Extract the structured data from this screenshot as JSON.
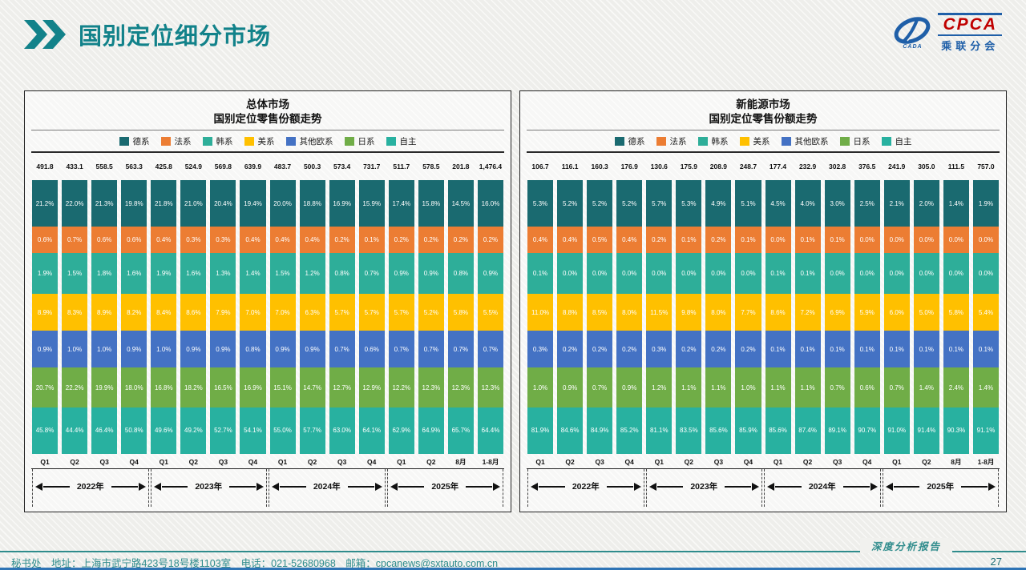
{
  "header": {
    "title": "国别定位细分市场"
  },
  "logo": {
    "cpca": "CPCA",
    "org": "乘联分会",
    "emblem": "CADA"
  },
  "footer": {
    "contact": "秘书处　地址：上海市武宁路423号18号楼1103室　电话：021-52680968　邮箱：cpcanews@sxtauto.com.cn",
    "report_label": "深度分析报告",
    "page_number": "27"
  },
  "chart_data": [
    {
      "type": "bar",
      "stacked": "percent",
      "title_line1": "总体市场",
      "title_line2": "国别定位零售份额走势",
      "categories": [
        "Q1",
        "Q2",
        "Q3",
        "Q4",
        "Q1",
        "Q2",
        "Q3",
        "Q4",
        "Q1",
        "Q2",
        "Q3",
        "Q4",
        "Q1",
        "Q2",
        "8月",
        "1-8月"
      ],
      "year_groups": [
        {
          "label": "2022年",
          "span": 4
        },
        {
          "label": "2023年",
          "span": 4
        },
        {
          "label": "2024年",
          "span": 4
        },
        {
          "label": "2025年",
          "span": 4
        }
      ],
      "totals": [
        491.8,
        433.1,
        558.5,
        563.3,
        425.8,
        524.9,
        569.8,
        639.9,
        483.7,
        500.3,
        573.4,
        731.7,
        511.7,
        578.5,
        201.8,
        1476.4
      ],
      "series": [
        {
          "name": "德系",
          "key": "germany",
          "color": "#1a6a70",
          "values": [
            21.2,
            22.0,
            21.3,
            19.8,
            21.8,
            21.0,
            20.4,
            19.4,
            20.0,
            18.8,
            16.9,
            15.9,
            17.4,
            15.8,
            14.5,
            16.0
          ]
        },
        {
          "name": "法系",
          "key": "france",
          "color": "#ec7d33",
          "values": [
            0.6,
            0.7,
            0.6,
            0.6,
            0.4,
            0.3,
            0.3,
            0.4,
            0.4,
            0.4,
            0.2,
            0.1,
            0.2,
            0.2,
            0.2,
            0.2
          ]
        },
        {
          "name": "韩系",
          "key": "korea",
          "color": "#2eae99",
          "values": [
            1.9,
            1.5,
            1.8,
            1.6,
            1.9,
            1.6,
            1.3,
            1.4,
            1.5,
            1.2,
            0.8,
            0.7,
            0.9,
            0.9,
            0.8,
            0.9
          ]
        },
        {
          "name": "美系",
          "key": "usa",
          "color": "#ffc000",
          "values": [
            8.9,
            8.3,
            8.9,
            8.2,
            8.4,
            8.6,
            7.9,
            7.0,
            7.0,
            6.3,
            5.7,
            5.7,
            5.7,
            5.2,
            5.8,
            5.5
          ]
        },
        {
          "name": "其他欧系",
          "key": "other-europe",
          "color": "#4472c4",
          "values": [
            0.9,
            1.0,
            1.0,
            0.9,
            1.0,
            0.9,
            0.9,
            0.8,
            0.9,
            0.9,
            0.7,
            0.6,
            0.7,
            0.7,
            0.7,
            0.7
          ]
        },
        {
          "name": "日系",
          "key": "japan",
          "color": "#70ad47",
          "values": [
            20.7,
            22.2,
            19.9,
            18.0,
            16.8,
            18.2,
            16.5,
            16.9,
            15.1,
            14.7,
            12.7,
            12.9,
            12.2,
            12.3,
            12.3,
            12.3
          ]
        },
        {
          "name": "自主",
          "key": "domestic",
          "color": "#28b1a0",
          "values": [
            45.8,
            44.4,
            46.4,
            50.8,
            49.6,
            49.2,
            52.7,
            54.1,
            55.0,
            57.7,
            63.0,
            64.1,
            62.9,
            64.9,
            65.7,
            64.4
          ]
        }
      ]
    },
    {
      "type": "bar",
      "stacked": "percent",
      "title_line1": "新能源市场",
      "title_line2": "国别定位零售份额走势",
      "categories": [
        "Q1",
        "Q2",
        "Q3",
        "Q4",
        "Q1",
        "Q2",
        "Q3",
        "Q4",
        "Q1",
        "Q2",
        "Q3",
        "Q4",
        "Q1",
        "Q2",
        "8月",
        "1-8月"
      ],
      "year_groups": [
        {
          "label": "2022年",
          "span": 4
        },
        {
          "label": "2023年",
          "span": 4
        },
        {
          "label": "2024年",
          "span": 4
        },
        {
          "label": "2025年",
          "span": 4
        }
      ],
      "totals": [
        106.7,
        116.1,
        160.3,
        176.9,
        130.6,
        175.9,
        208.9,
        248.7,
        177.4,
        232.9,
        302.8,
        376.5,
        241.9,
        305.0,
        111.5,
        757.0
      ],
      "series": [
        {
          "name": "德系",
          "key": "germany",
          "color": "#1a6a70",
          "values": [
            5.3,
            5.2,
            5.2,
            5.2,
            5.7,
            5.3,
            4.9,
            5.1,
            4.5,
            4.0,
            3.0,
            2.5,
            2.1,
            2.0,
            1.4,
            1.9
          ]
        },
        {
          "name": "法系",
          "key": "france",
          "color": "#ec7d33",
          "values": [
            0.4,
            0.4,
            0.5,
            0.4,
            0.2,
            0.1,
            0.2,
            0.1,
            0.0,
            0.1,
            0.1,
            0.0,
            0.0,
            0.0,
            0.0,
            0.0
          ]
        },
        {
          "name": "韩系",
          "key": "korea",
          "color": "#2eae99",
          "values": [
            0.1,
            0.0,
            0.0,
            0.0,
            0.0,
            0.0,
            0.0,
            0.0,
            0.1,
            0.1,
            0.0,
            0.0,
            0.0,
            0.0,
            0.0,
            0.0
          ]
        },
        {
          "name": "美系",
          "key": "usa",
          "color": "#ffc000",
          "values": [
            11.0,
            8.8,
            8.5,
            8.0,
            11.5,
            9.8,
            8.0,
            7.7,
            8.6,
            7.2,
            6.9,
            5.9,
            6.0,
            5.0,
            5.8,
            5.4
          ]
        },
        {
          "name": "其他欧系",
          "key": "other-europe",
          "color": "#4472c4",
          "values": [
            0.3,
            0.2,
            0.2,
            0.2,
            0.3,
            0.2,
            0.2,
            0.2,
            0.1,
            0.1,
            0.1,
            0.1,
            0.1,
            0.1,
            0.1,
            0.1
          ]
        },
        {
          "name": "日系",
          "key": "japan",
          "color": "#70ad47",
          "values": [
            1.0,
            0.9,
            0.7,
            0.9,
            1.2,
            1.1,
            1.1,
            1.0,
            1.1,
            1.1,
            0.7,
            0.6,
            0.7,
            1.4,
            2.4,
            1.4
          ]
        },
        {
          "name": "自主",
          "key": "domestic",
          "color": "#28b1a0",
          "values": [
            81.9,
            84.6,
            84.9,
            85.2,
            81.1,
            83.5,
            85.6,
            85.9,
            85.6,
            87.4,
            89.1,
            90.7,
            91.0,
            91.4,
            90.3,
            91.1
          ]
        }
      ]
    }
  ]
}
